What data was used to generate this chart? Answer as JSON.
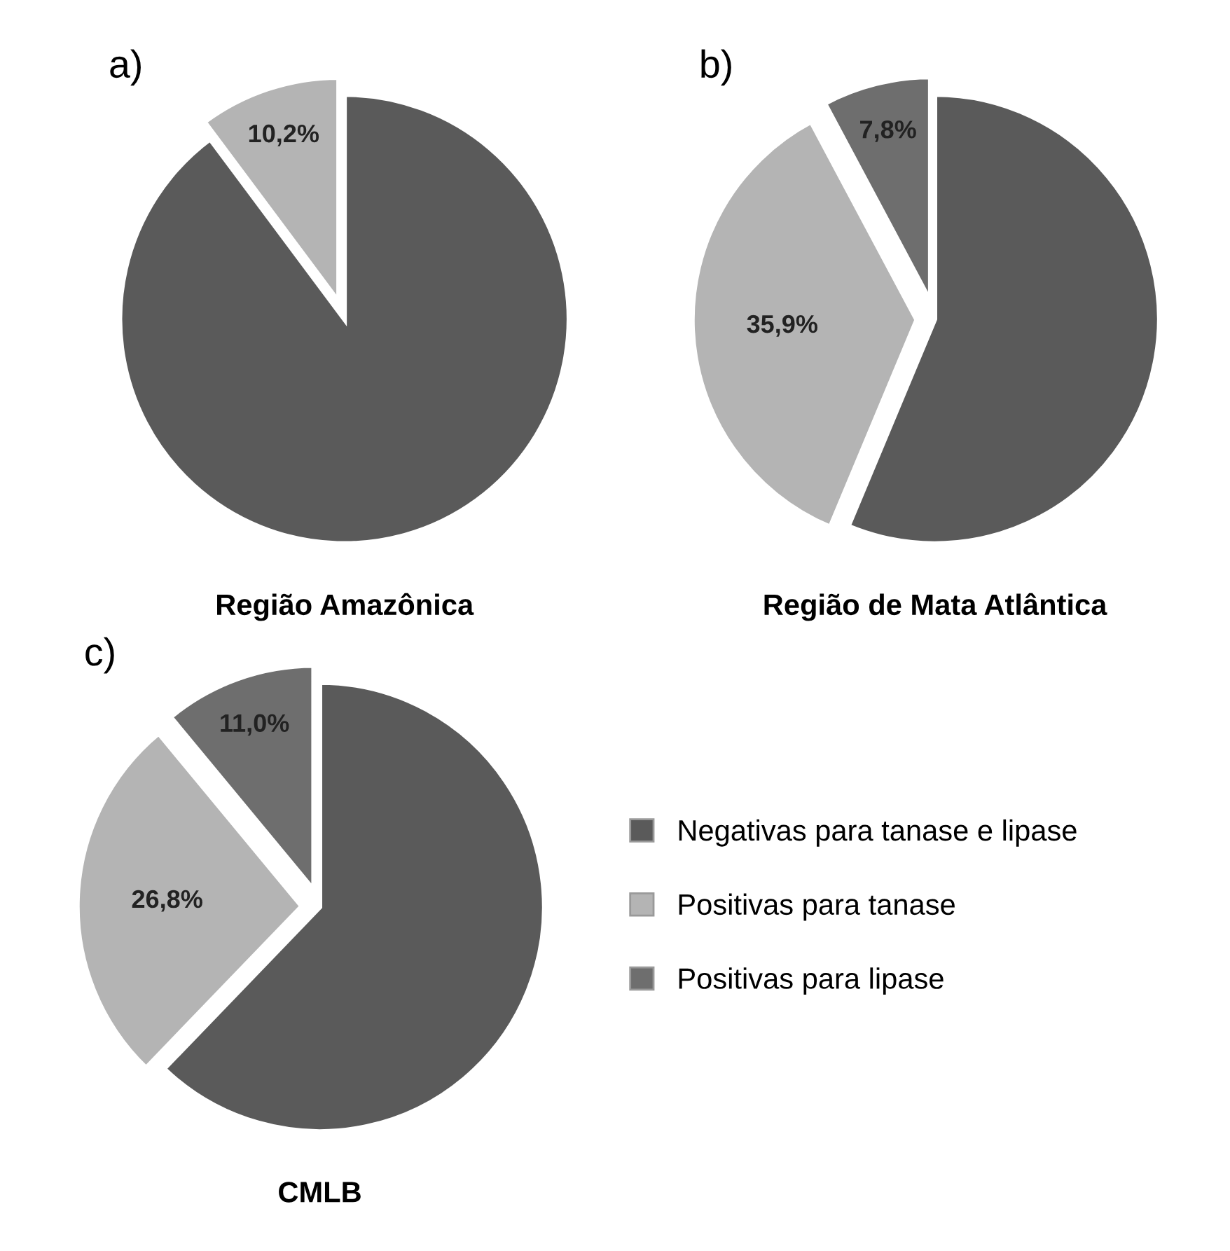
{
  "chart_data": [
    {
      "type": "pie",
      "title": "a)",
      "xlabel": "Região Amazônica",
      "categories": [
        null,
        null
      ],
      "values": [
        89.8,
        10.2
      ],
      "colors": [
        "#5a5a5a",
        "#b4b4b4"
      ],
      "value_labels": [
        null,
        "10,2%"
      ],
      "legend": false
    },
    {
      "type": "pie",
      "title": "b)",
      "xlabel": "Região de Mata Atlântica",
      "categories": [
        null,
        null,
        null
      ],
      "values": [
        56.3,
        35.9,
        7.8
      ],
      "colors": [
        "#5a5a5a",
        "#b4b4b4",
        "#6e6e6e"
      ],
      "value_labels": [
        null,
        "35,9%",
        "7,8%"
      ],
      "legend": false
    },
    {
      "type": "pie",
      "title": "c)",
      "xlabel": "CMLB",
      "categories": [
        "Negativas para tanase e lipase",
        "Positivas para tanase",
        "Positivas para lipase"
      ],
      "values": [
        62.2,
        26.8,
        11.0
      ],
      "colors": [
        "#5a5a5a",
        "#b4b4b4",
        "#6e6e6e"
      ],
      "value_labels": [
        null,
        "26,8%",
        "11,0%"
      ],
      "legend": "right"
    }
  ]
}
